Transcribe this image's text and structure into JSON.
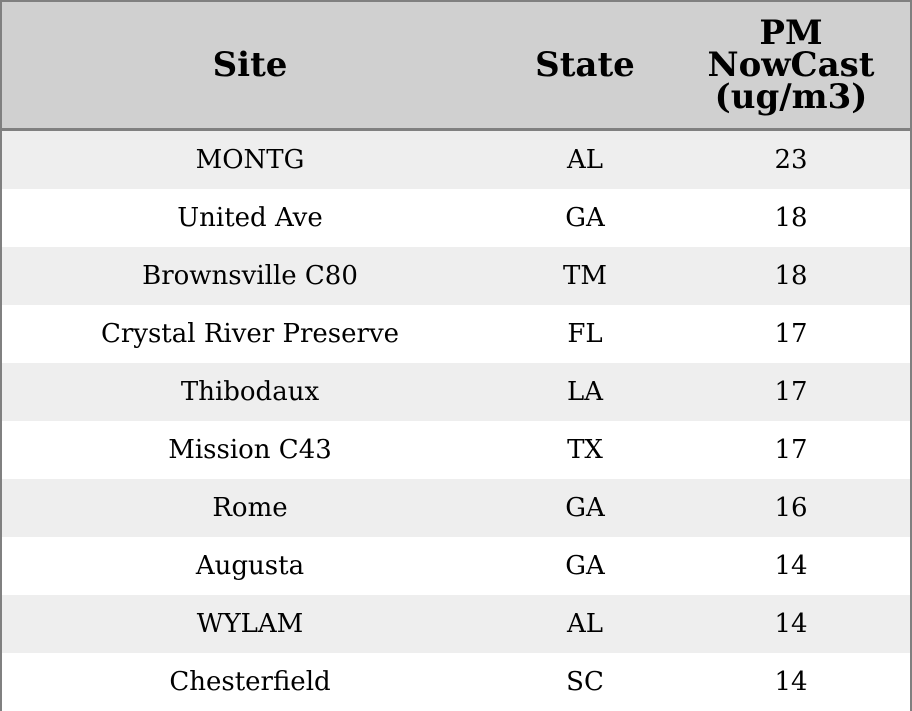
{
  "chart_data": {
    "type": "table",
    "columns": [
      "Site",
      "State",
      "PM\nNowCast\n(ug/m3)"
    ],
    "rows": [
      [
        "MONTG",
        "AL",
        "23"
      ],
      [
        "United Ave",
        "GA",
        "18"
      ],
      [
        "Brownsville C80",
        "TM",
        "18"
      ],
      [
        "Crystal River Preserve",
        "FL",
        "17"
      ],
      [
        "Thibodaux",
        "LA",
        "17"
      ],
      [
        "Mission C43",
        "TX",
        "17"
      ],
      [
        "Rome",
        "GA",
        "16"
      ],
      [
        "Augusta",
        "GA",
        "14"
      ],
      [
        "WYLAM",
        "AL",
        "14"
      ],
      [
        "Chesterfield",
        "SC",
        "14"
      ]
    ]
  },
  "colors": {
    "header_bg": "#d0d0d0",
    "alt_row_bg": "#eeeeee",
    "row_bg": "#ffffff",
    "border": "#808080"
  }
}
